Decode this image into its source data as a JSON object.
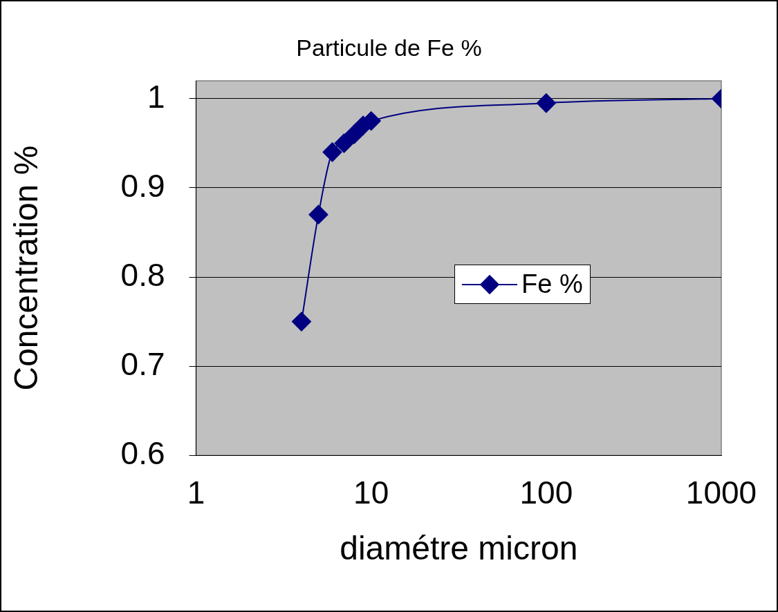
{
  "chart_data": {
    "type": "line",
    "title": "Particule de Fe %",
    "xlabel": "diamétre micron",
    "ylabel": "Concentration %",
    "x": [
      4,
      5,
      6,
      7,
      8,
      9,
      10,
      100,
      1000
    ],
    "series": [
      {
        "name": "Fe %",
        "color": "#000080",
        "values": [
          0.75,
          0.87,
          0.94,
          0.95,
          0.96,
          0.97,
          0.975,
          0.995,
          1.0
        ]
      }
    ],
    "log": "x",
    "xlim": [
      1,
      1000
    ],
    "xticks": [
      1,
      10,
      100,
      1000
    ],
    "ylim": [
      0.6,
      1.02
    ],
    "yticks": [
      {
        "value": 0.6,
        "label": "0.6"
      },
      {
        "value": 0.7,
        "label": "0.7"
      },
      {
        "value": 0.8,
        "label": "0.8"
      },
      {
        "value": 0.9,
        "label": "0.9"
      },
      {
        "value": 1,
        "label": "1"
      }
    ],
    "grid": "y",
    "legend": "right",
    "marker": "diamond",
    "line_style": "solid"
  }
}
